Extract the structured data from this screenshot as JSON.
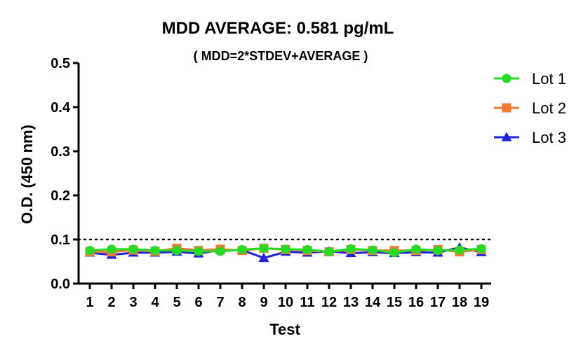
{
  "chart_data": {
    "type": "line",
    "title": "MDD AVERAGE:  0.581 pg/mL",
    "subtitle": "( MDD=2*STDEV+AVERAGE )",
    "xlabel": "Test",
    "ylabel": "O.D. (450 nm)",
    "categories": [
      "1",
      "2",
      "3",
      "4",
      "5",
      "6",
      "7",
      "8",
      "9",
      "10",
      "11",
      "12",
      "13",
      "14",
      "15",
      "16",
      "17",
      "18",
      "19"
    ],
    "ylim": [
      0,
      0.5
    ],
    "yticks": [
      "0.0",
      "0.1",
      "0.2",
      "0.3",
      "0.4",
      "0.5"
    ],
    "reference_line": {
      "y": 0.1,
      "style": "dotted"
    },
    "grid": false,
    "legend_position": "right",
    "series": [
      {
        "name": "Lot 1",
        "color": "#22dd22",
        "marker": "circle",
        "values": [
          0.075,
          0.078,
          0.078,
          0.075,
          0.075,
          0.073,
          0.073,
          0.077,
          0.08,
          0.078,
          0.077,
          0.072,
          0.079,
          0.076,
          0.07,
          0.078,
          0.075,
          0.076,
          0.079
        ]
      },
      {
        "name": "Lot 2",
        "color": "#f07a30",
        "marker": "square",
        "values": [
          0.072,
          0.072,
          0.076,
          0.073,
          0.08,
          0.075,
          0.078,
          0.075,
          0.08,
          0.077,
          0.075,
          0.072,
          0.077,
          0.075,
          0.075,
          0.075,
          0.077,
          0.072,
          0.077
        ]
      },
      {
        "name": "Lot 3",
        "color": "#2222dd",
        "marker": "triangle",
        "values": [
          0.07,
          0.065,
          0.07,
          0.07,
          0.072,
          0.068,
          0.076,
          0.076,
          0.058,
          0.072,
          0.07,
          0.073,
          0.069,
          0.071,
          0.069,
          0.071,
          0.07,
          0.082,
          0.071
        ]
      }
    ]
  }
}
